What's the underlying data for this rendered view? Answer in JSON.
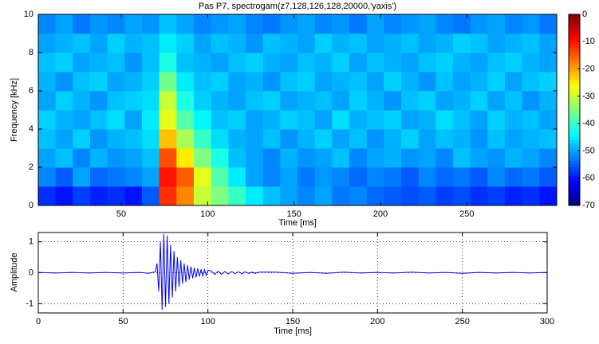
{
  "chart_data": [
    {
      "type": "heatmap",
      "title": "Pas P7, spectrogam(z7,128,126,128,20000,'yaxis')",
      "x_label": "Time [ms]",
      "y_label": "Frequency  [kHz]",
      "colormap": "jet",
      "x": [
        7,
        17,
        27,
        37,
        47,
        57,
        67,
        77,
        87,
        97,
        107,
        117,
        127,
        137,
        147,
        157,
        167,
        177,
        187,
        197,
        207,
        217,
        227,
        237,
        247,
        257,
        267,
        277,
        287,
        297
      ],
      "y": [
        0.5,
        1.5,
        2.5,
        3.5,
        4.5,
        5.5,
        6.5,
        7.5,
        8.5,
        9.5
      ],
      "z": [
        [
          -58,
          -60,
          -57,
          -59,
          -58,
          -60,
          -55,
          -12,
          -18,
          -30,
          -35,
          -40,
          -45,
          -48,
          -50,
          -52,
          -50,
          -53,
          -52,
          -54,
          -55,
          -56,
          -55,
          -57,
          -56,
          -58,
          -57,
          -59,
          -58,
          -60
        ],
        [
          -52,
          -55,
          -50,
          -54,
          -53,
          -52,
          -50,
          -10,
          -15,
          -28,
          -38,
          -45,
          -50,
          -52,
          -50,
          -53,
          -51,
          -52,
          -54,
          -52,
          -53,
          -55,
          -52,
          -54,
          -53,
          -55,
          -52,
          -54,
          -53,
          -55
        ],
        [
          -50,
          -48,
          -52,
          -49,
          -51,
          -50,
          -48,
          -14,
          -25,
          -35,
          -42,
          -48,
          -50,
          -52,
          -49,
          -51,
          -50,
          -48,
          -52,
          -50,
          -49,
          -51,
          -50,
          -52,
          -48,
          -50,
          -51,
          -49,
          -50,
          -52
        ],
        [
          -48,
          -50,
          -47,
          -51,
          -49,
          -48,
          -46,
          -22,
          -32,
          -40,
          -46,
          -49,
          -50,
          -48,
          -51,
          -49,
          -47,
          -50,
          -48,
          -51,
          -49,
          -47,
          -50,
          -48,
          -49,
          -51,
          -48,
          -50,
          -49,
          -48
        ],
        [
          -47,
          -49,
          -50,
          -48,
          -46,
          -50,
          -45,
          -28,
          -38,
          -44,
          -48,
          -47,
          -50,
          -49,
          -47,
          -48,
          -50,
          -46,
          -49,
          -48,
          -47,
          -50,
          -49,
          -46,
          -48,
          -50,
          -47,
          -49,
          -48,
          -50
        ],
        [
          -50,
          -47,
          -49,
          -51,
          -48,
          -47,
          -46,
          -30,
          -42,
          -47,
          -49,
          -50,
          -48,
          -47,
          -50,
          -49,
          -48,
          -50,
          -47,
          -49,
          -51,
          -48,
          -47,
          -50,
          -49,
          -47,
          -50,
          -48,
          -51,
          -49
        ],
        [
          -49,
          -51,
          -48,
          -47,
          -50,
          -49,
          -47,
          -36,
          -45,
          -48,
          -47,
          -50,
          -49,
          -51,
          -48,
          -47,
          -50,
          -49,
          -48,
          -50,
          -47,
          -49,
          -51,
          -48,
          -50,
          -49,
          -47,
          -50,
          -48,
          -47
        ],
        [
          -48,
          -47,
          -50,
          -49,
          -48,
          -51,
          -48,
          -42,
          -48,
          -49,
          -50,
          -48,
          -47,
          -49,
          -50,
          -48,
          -49,
          -47,
          -50,
          -48,
          -49,
          -50,
          -48,
          -47,
          -49,
          -50,
          -48,
          -47,
          -49,
          -50
        ],
        [
          -50,
          -49,
          -48,
          -50,
          -47,
          -49,
          -48,
          -45,
          -47,
          -50,
          -48,
          -49,
          -51,
          -48,
          -49,
          -50,
          -47,
          -49,
          -48,
          -50,
          -49,
          -48,
          -50,
          -49,
          -47,
          -48,
          -50,
          -49,
          -48,
          -50
        ],
        [
          -52,
          -50,
          -53,
          -51,
          -52,
          -50,
          -51,
          -48,
          -50,
          -52,
          -51,
          -50,
          -52,
          -53,
          -51,
          -50,
          -52,
          -51,
          -53,
          -50,
          -52,
          -51,
          -50,
          -52,
          -53,
          -51,
          -50,
          -52,
          -51,
          -53
        ]
      ],
      "xlim": [
        2,
        302
      ],
      "xticks": [
        50,
        100,
        150,
        200,
        250
      ],
      "ylim": [
        0,
        10
      ],
      "yticks": [
        0,
        2,
        4,
        6,
        8,
        10
      ],
      "clim": [
        -70,
        0
      ],
      "cticks": [
        0,
        -10,
        -20,
        -30,
        -40,
        -50,
        -60,
        -70
      ]
    },
    {
      "type": "line",
      "x_label": "Time [ms]",
      "y_label": "Amplitude",
      "color": "#0000ff",
      "grid": true,
      "x": [
        0,
        10,
        20,
        30,
        40,
        50,
        60,
        65,
        69,
        70,
        71,
        72,
        73,
        74,
        75,
        76,
        77,
        78,
        79,
        80,
        81,
        82,
        83,
        84,
        85,
        86,
        87,
        88,
        89,
        90,
        91,
        92,
        93,
        94,
        95,
        96,
        97,
        98,
        99,
        100,
        102,
        104,
        106,
        108,
        110,
        112,
        114,
        116,
        118,
        120,
        122,
        124,
        126,
        128,
        130,
        140,
        150,
        160,
        170,
        180,
        190,
        200,
        210,
        220,
        230,
        240,
        250,
        260,
        270,
        280,
        290,
        300
      ],
      "values": [
        0.01,
        -0.01,
        0.01,
        -0.01,
        0.01,
        -0.01,
        0.01,
        -0.02,
        0.03,
        0.3,
        -0.6,
        1.0,
        -1.2,
        1.25,
        -1.1,
        1.2,
        -1.0,
        0.9,
        -0.8,
        0.7,
        -0.6,
        0.5,
        -0.45,
        0.4,
        -0.35,
        0.3,
        -0.3,
        0.25,
        -0.22,
        0.2,
        -0.18,
        0.16,
        -0.15,
        0.14,
        -0.12,
        0.11,
        -0.1,
        0.1,
        -0.08,
        0.08,
        0.06,
        -0.06,
        0.05,
        -0.05,
        0.04,
        -0.04,
        0.04,
        -0.03,
        0.03,
        -0.03,
        0.03,
        -0.02,
        0.02,
        -0.02,
        0.02,
        0.02,
        -0.02,
        0.01,
        -0.02,
        0.02,
        -0.01,
        0.01,
        -0.01,
        0.02,
        -0.01,
        0.01,
        -0.02,
        0.01,
        -0.01,
        0.01,
        -0.01,
        0.01
      ],
      "xlim": [
        0,
        300
      ],
      "xticks": [
        0,
        50,
        100,
        150,
        200,
        250,
        300
      ],
      "ylim": [
        -1.3,
        1.3
      ],
      "yticks": [
        -1,
        0,
        1
      ]
    }
  ]
}
